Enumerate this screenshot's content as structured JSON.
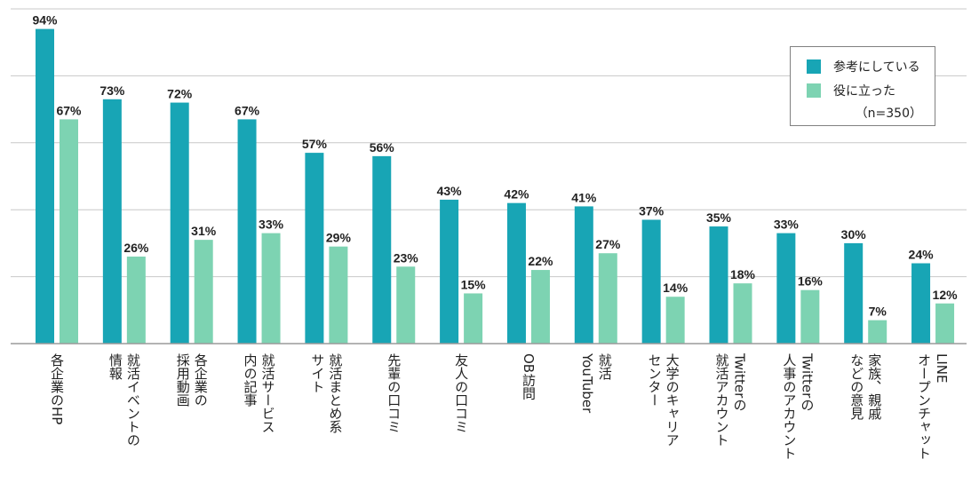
{
  "chart_data": {
    "type": "bar",
    "categories": [
      "各企業のHP",
      "就活イベントの情報",
      "各企業の採用動画",
      "就活サービス内の記事",
      "就活まとめ系サイト",
      "先輩の口コミ",
      "友人の口コミ",
      "OB訪問",
      "就活YouTuber",
      "大学のキャリアセンター",
      "Twitterの就活アカウント",
      "Twitterの人事のアカウント",
      "家族、親戚などの意見",
      "LINEオープンチャット"
    ],
    "category_lines": [
      [
        "各企業のHP"
      ],
      [
        "就活イベントの",
        "情報"
      ],
      [
        "各企業の",
        "採用動画"
      ],
      [
        "就活サービス",
        "内の記事"
      ],
      [
        "就活まとめ系",
        "サイト"
      ],
      [
        "先輩の口コミ"
      ],
      [
        "友人の口コミ"
      ],
      [
        "OB訪問"
      ],
      [
        "就活",
        "YouTuber"
      ],
      [
        "大学のキャリア",
        "センター"
      ],
      [
        "Twitterの",
        "就活アカウント"
      ],
      [
        "Twitterの",
        "人事のアカウント"
      ],
      [
        "家族、親戚",
        "などの意見"
      ],
      [
        "LINE",
        "オープンチャット"
      ]
    ],
    "series": [
      {
        "name": "参考にしている",
        "color": "#18a5b5",
        "values": [
          94,
          73,
          72,
          67,
          57,
          56,
          43,
          42,
          41,
          37,
          35,
          33,
          30,
          24
        ],
        "labels": [
          "94%",
          "73%",
          "72%",
          "67%",
          "57%",
          "56%",
          "43%",
          "42%",
          "41%",
          "37%",
          "35%",
          "33%",
          "30%",
          "24%"
        ]
      },
      {
        "name": "役に立った",
        "color": "#7dd3b2",
        "values": [
          67,
          26,
          31,
          33,
          29,
          23,
          15,
          22,
          27,
          14,
          18,
          16,
          7,
          12
        ],
        "labels": [
          "67%",
          "26%",
          "31%",
          "33%",
          "29%",
          "23%",
          "15%",
          "22%",
          "27%",
          "14%",
          "18%",
          "16%",
          "7%",
          "12%"
        ]
      }
    ],
    "ylim": [
      0,
      100
    ],
    "grid": true,
    "legend_position": "top-right",
    "legend_note": "（n=350）"
  }
}
